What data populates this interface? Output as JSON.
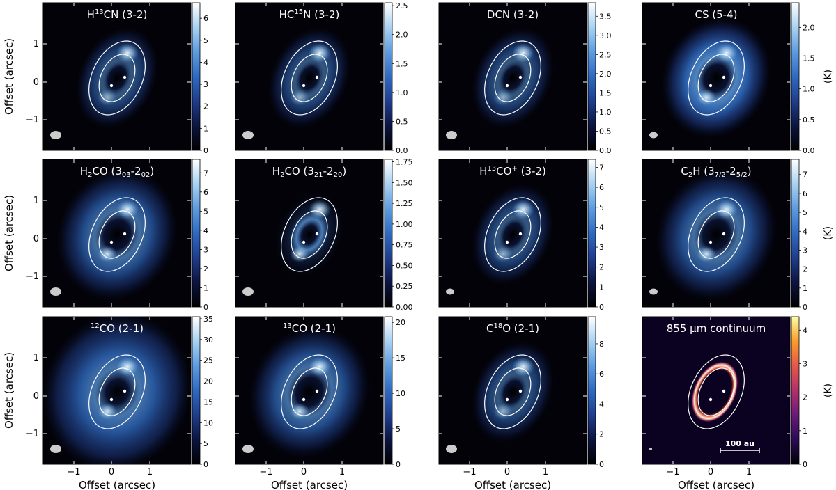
{
  "figure": {
    "ylabel": "Offset (arcsec)",
    "xlabel": "Offset (arcsec)",
    "unit_label": "(K)",
    "scale_bar_label": "100 au",
    "xticks": [
      "1",
      "0",
      "−1"
    ],
    "yticks": [
      "1",
      "0",
      "−1"
    ]
  },
  "colors": {
    "blue_map": [
      "#000000",
      "#0c1440",
      "#1f3d8c",
      "#2f6ac0",
      "#5d9ce0",
      "#a8d2f2",
      "#ffffff"
    ],
    "inferno_map": [
      "#000004",
      "#2a0b55",
      "#6a1a78",
      "#b2306b",
      "#e6574a",
      "#fb9b29",
      "#fcffa4"
    ],
    "ellipse": "#ffffff",
    "beam": "#cccccc"
  },
  "chart_data": [
    {
      "type": "heatmap",
      "title": "H$^{13}$CN (3-2)",
      "title_parts": [
        [
          "H",
          ""
        ],
        [
          "13",
          "sup"
        ],
        [
          "CN (3-2)",
          ""
        ]
      ],
      "cbar_ticks": [
        "0",
        "1",
        "2",
        "3",
        "4",
        "5",
        "6"
      ],
      "cbar_max": 6.7,
      "colormap": "blue",
      "morphology": "compact",
      "beam": "large"
    },
    {
      "type": "heatmap",
      "title": "HC$^{15}$N (3-2)",
      "title_parts": [
        [
          "HC",
          ""
        ],
        [
          "15",
          "sup"
        ],
        [
          "N (3-2)",
          ""
        ]
      ],
      "cbar_ticks": [
        "0.0",
        "0.5",
        "1.0",
        "1.5",
        "2.0",
        "2.5"
      ],
      "cbar_max": 2.55,
      "colormap": "blue",
      "morphology": "compact",
      "beam": "large"
    },
    {
      "type": "heatmap",
      "title": "DCN (3-2)",
      "title_parts": [
        [
          "DCN (3-2)",
          ""
        ]
      ],
      "cbar_ticks": [
        "0.0",
        "0.5",
        "1.0",
        "1.5",
        "2.0",
        "2.5",
        "3.0",
        "3.5"
      ],
      "cbar_max": 3.85,
      "colormap": "blue",
      "morphology": "compact",
      "beam": "large"
    },
    {
      "type": "heatmap",
      "title": "CS (5-4)",
      "title_parts": [
        [
          "CS (5-4)",
          ""
        ]
      ],
      "cbar_ticks": [
        "0.0",
        "0.5",
        "1.0",
        "1.5",
        "2.0"
      ],
      "cbar_max": 2.4,
      "colormap": "blue",
      "morphology": "ring",
      "beam": "small",
      "unit": "(K)"
    },
    {
      "type": "heatmap",
      "title": "H$_2$CO (3$_{03}$-2$_{02}$)",
      "title_parts": [
        [
          "H",
          ""
        ],
        [
          "2",
          "sub"
        ],
        [
          "CO (3",
          ""
        ],
        [
          "03",
          "sub"
        ],
        [
          "-2",
          ""
        ],
        [
          "02",
          "sub"
        ],
        [
          ")",
          ""
        ]
      ],
      "cbar_ticks": [
        "0",
        "1",
        "2",
        "3",
        "4",
        "5",
        "6",
        "7"
      ],
      "cbar_max": 7.7,
      "colormap": "blue",
      "morphology": "wide",
      "beam": "large"
    },
    {
      "type": "heatmap",
      "title": "H$_2$CO (3$_{21}$-2$_{20}$)",
      "title_parts": [
        [
          "H",
          ""
        ],
        [
          "2",
          "sub"
        ],
        [
          "CO (3",
          ""
        ],
        [
          "21",
          "sub"
        ],
        [
          "-2",
          ""
        ],
        [
          "20",
          "sub"
        ],
        [
          ")",
          ""
        ]
      ],
      "cbar_ticks": [
        "0.00",
        "0.25",
        "0.50",
        "0.75",
        "1.00",
        "1.25",
        "1.50",
        "1.75"
      ],
      "cbar_max": 1.78,
      "colormap": "blue",
      "morphology": "faint",
      "beam": "large"
    },
    {
      "type": "heatmap",
      "title": "H$^{13}$CO$^+$ (3-2)",
      "title_parts": [
        [
          "H",
          ""
        ],
        [
          "13",
          "sup"
        ],
        [
          "CO",
          ""
        ],
        [
          "+",
          "sup"
        ],
        [
          " (3-2)",
          ""
        ]
      ],
      "cbar_ticks": [
        "0",
        "1",
        "2",
        "3",
        "4",
        "5",
        "6",
        "7"
      ],
      "cbar_max": 7.4,
      "colormap": "blue",
      "morphology": "compact",
      "beam": "small"
    },
    {
      "type": "heatmap",
      "title": "C$_2$H (3$_{7/2}$-2$_{5/2}$)",
      "title_parts": [
        [
          "C",
          ""
        ],
        [
          "2",
          "sub"
        ],
        [
          "H (3",
          ""
        ],
        [
          "7/2",
          "sub"
        ],
        [
          "-2",
          ""
        ],
        [
          "5/2",
          "sub"
        ],
        [
          ")",
          ""
        ]
      ],
      "cbar_ticks": [
        "0",
        "1",
        "2",
        "3",
        "4",
        "5",
        "6",
        "7"
      ],
      "cbar_max": 7.8,
      "colormap": "blue",
      "morphology": "wide",
      "beam": "small",
      "unit": "(K)"
    },
    {
      "type": "heatmap",
      "title": "$^{12}$CO (2-1)",
      "title_parts": [
        [
          "12",
          "sup"
        ],
        [
          "CO (2-1)",
          ""
        ]
      ],
      "cbar_ticks": [
        "0",
        "5",
        "10",
        "15",
        "20",
        "25",
        "30",
        "35"
      ],
      "cbar_max": 35.5,
      "colormap": "blue",
      "morphology": "extended",
      "beam": "large"
    },
    {
      "type": "heatmap",
      "title": "$^{13}$CO (2-1)",
      "title_parts": [
        [
          "13",
          "sup"
        ],
        [
          "CO (2-1)",
          ""
        ]
      ],
      "cbar_ticks": [
        "0",
        "5",
        "10",
        "15",
        "20"
      ],
      "cbar_max": 20.8,
      "colormap": "blue",
      "morphology": "wide",
      "beam": "large"
    },
    {
      "type": "heatmap",
      "title": "C$^{18}$O (2-1)",
      "title_parts": [
        [
          "C",
          ""
        ],
        [
          "18",
          "sup"
        ],
        [
          "O (2-1)",
          ""
        ]
      ],
      "cbar_ticks": [
        "0",
        "2",
        "4",
        "6",
        "8"
      ],
      "cbar_max": 9.8,
      "colormap": "blue",
      "morphology": "compact",
      "beam": "large"
    },
    {
      "type": "heatmap",
      "title": "855 $\\mu$m continuum",
      "title_parts": [
        [
          "855 μm continuum",
          ""
        ]
      ],
      "cbar_ticks": [
        "0",
        "1",
        "2",
        "3",
        "4"
      ],
      "cbar_max": 4.4,
      "colormap": "inferno",
      "morphology": "thinring",
      "beam": "tiny",
      "scale_bar": true,
      "unit": "(K)"
    }
  ]
}
